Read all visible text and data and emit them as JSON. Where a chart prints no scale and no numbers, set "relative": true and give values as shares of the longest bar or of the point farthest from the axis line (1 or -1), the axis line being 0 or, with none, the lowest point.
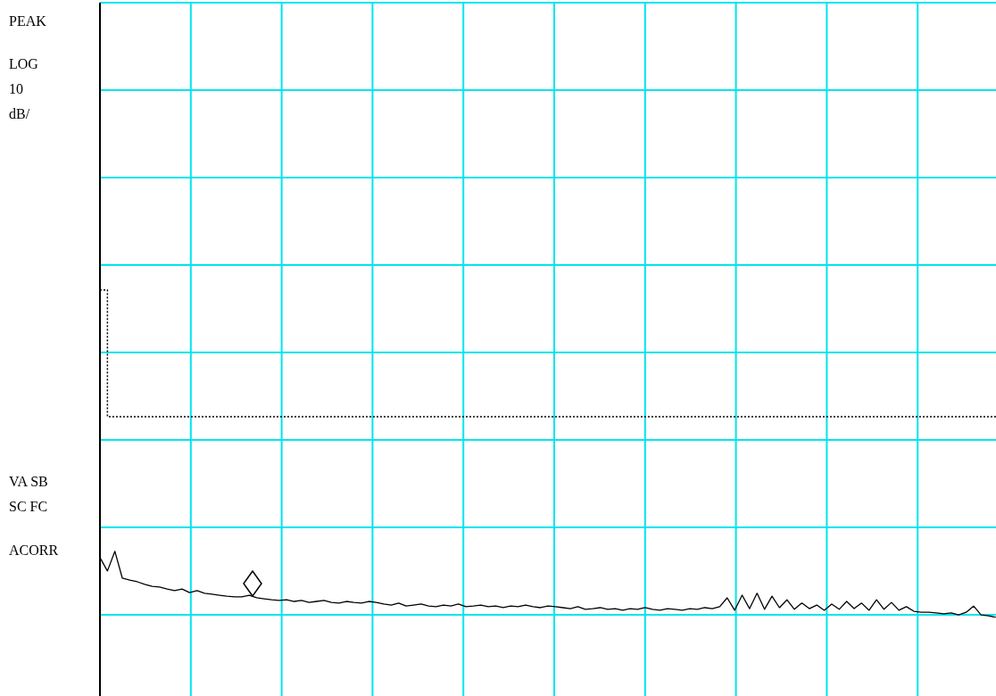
{
  "chart_data": {
    "type": "line",
    "relative": true,
    "categories": [
      null,
      null,
      null,
      null,
      null,
      null,
      null,
      null,
      null,
      null,
      null,
      null,
      null,
      null,
      null,
      null,
      null,
      null,
      null,
      null,
      null,
      null,
      null,
      null,
      null,
      null,
      null,
      null,
      null,
      null,
      null,
      null,
      null,
      null,
      null,
      null,
      null,
      null,
      null,
      null,
      null,
      null,
      null,
      null,
      null,
      null,
      null,
      null,
      null,
      null,
      null,
      null,
      null,
      null,
      null,
      null,
      null,
      null,
      null,
      null,
      null,
      null,
      null,
      null,
      null,
      null,
      null,
      null,
      null,
      null,
      null,
      null,
      null,
      null,
      null,
      null,
      null,
      null,
      null,
      null,
      null,
      null,
      null,
      null,
      null,
      null,
      null,
      null,
      null,
      null,
      null,
      null,
      null,
      null,
      null,
      null,
      null,
      null,
      null,
      null,
      null,
      null,
      null,
      null,
      null,
      null,
      null,
      null,
      null,
      null,
      null,
      null,
      null,
      null,
      null,
      null,
      null,
      null,
      null,
      null,
      null
    ],
    "series": [
      {
        "color": "#000000",
        "line_style": "solid",
        "values": [
          0.183,
          0.142,
          0.202,
          0.12,
          0.114,
          0.109,
          0.101,
          0.095,
          0.093,
          0.087,
          0.082,
          0.087,
          0.076,
          0.082,
          0.074,
          0.071,
          0.068,
          0.065,
          0.063,
          0.063,
          0.068,
          0.06,
          0.057,
          0.054,
          0.052,
          0.054,
          0.049,
          0.052,
          0.046,
          0.049,
          0.052,
          0.046,
          0.044,
          0.049,
          0.046,
          0.044,
          0.049,
          0.046,
          0.041,
          0.038,
          0.044,
          0.035,
          0.038,
          0.041,
          0.035,
          0.033,
          0.038,
          0.035,
          0.041,
          0.033,
          0.035,
          0.038,
          0.033,
          0.035,
          0.03,
          0.035,
          0.033,
          0.038,
          0.033,
          0.03,
          0.035,
          0.033,
          0.03,
          0.027,
          0.033,
          0.025,
          0.027,
          0.03,
          0.025,
          0.027,
          0.022,
          0.027,
          0.025,
          0.03,
          0.025,
          0.022,
          0.027,
          0.025,
          0.022,
          0.027,
          0.025,
          0.03,
          0.027,
          0.033,
          0.06,
          0.022,
          0.068,
          0.027,
          0.074,
          0.025,
          0.065,
          0.03,
          0.054,
          0.025,
          0.044,
          0.027,
          0.038,
          0.022,
          0.041,
          0.025,
          0.049,
          0.027,
          0.044,
          0.022,
          0.054,
          0.025,
          0.046,
          0.022,
          0.033,
          0.019,
          0.016,
          0.016,
          0.014,
          0.011,
          0.014,
          0.008,
          0.016,
          0.035,
          0.008,
          0.005,
          0
        ]
      },
      {
        "type": "step",
        "color": "#000000",
        "line_style": "dotted",
        "values": [
          1,
          0.613,
          0.613,
          0.613,
          0.613,
          0.613,
          0.613,
          0.613,
          0.613,
          0.613,
          0.613,
          0.613,
          0.613,
          0.613,
          0.613,
          0.613,
          0.613,
          0.613,
          0.613,
          0.613,
          0.613,
          0.613,
          0.613,
          0.613,
          0.613,
          0.613,
          0.613,
          0.613,
          0.613,
          0.613,
          0.613,
          0.613,
          0.613,
          0.613,
          0.613,
          0.613,
          0.613,
          0.613,
          0.613,
          0.613,
          0.613,
          0.613,
          0.613,
          0.613,
          0.613,
          0.613,
          0.613,
          0.613,
          0.613,
          0.613,
          0.613,
          0.613,
          0.613,
          0.613,
          0.613,
          0.613,
          0.613,
          0.613,
          0.613,
          0.613,
          0.613,
          0.613,
          0.613,
          0.613,
          0.613,
          0.613,
          0.613,
          0.613,
          0.613,
          0.613,
          0.613,
          0.613,
          0.613,
          0.613,
          0.613,
          0.613,
          0.613,
          0.613,
          0.613,
          0.613,
          0.613,
          0.613,
          0.613,
          0.613,
          0.613,
          0.613,
          0.613,
          0.613,
          0.613,
          0.613,
          0.613,
          0.613,
          0.613,
          0.613,
          0.613,
          0.613,
          0.613,
          0.613,
          0.613,
          0.613,
          0.613,
          0.613,
          0.613,
          0.613,
          0.613,
          0.613,
          0.613,
          0.613,
          0.613,
          0.613,
          0.613,
          0.613,
          0.613,
          0.613,
          0.613,
          0.613,
          0.613,
          0.613,
          0.613,
          0.613,
          0.613
        ]
      }
    ],
    "grid": true,
    "annotations": [
      "PEAK",
      "LOG",
      "10",
      "dB/",
      "VA SB",
      "SC FC",
      "ACORR"
    ]
  }
}
